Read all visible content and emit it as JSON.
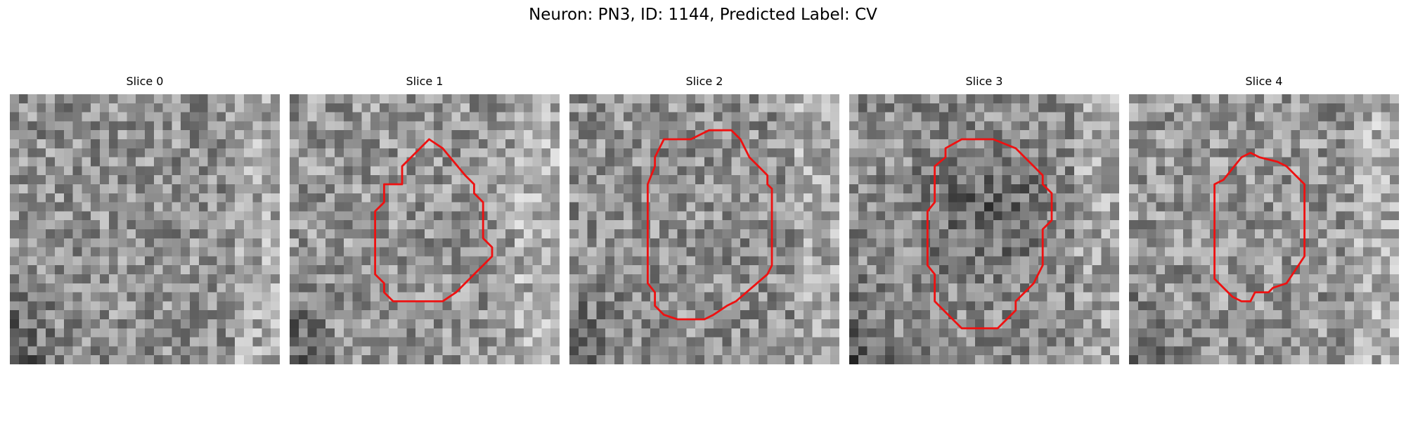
{
  "figure": {
    "title": "Neuron: PN3, ID: 1144, Predicted Label: CV"
  },
  "panels": [
    {
      "title": "Slice 0",
      "has_contour": false,
      "base": 145,
      "dark_center": false
    },
    {
      "title": "Slice 1",
      "has_contour": true,
      "base": 150,
      "dark_center": false
    },
    {
      "title": "Slice 2",
      "has_contour": true,
      "base": 145,
      "dark_center": false
    },
    {
      "title": "Slice 3",
      "has_contour": true,
      "base": 140,
      "dark_center": true
    },
    {
      "title": "Slice 4",
      "has_contour": true,
      "base": 150,
      "dark_center": false
    }
  ],
  "colors": {
    "contour": "#ee1111"
  }
}
